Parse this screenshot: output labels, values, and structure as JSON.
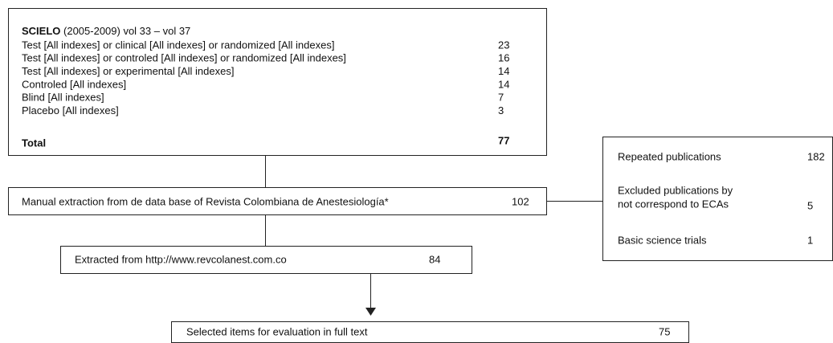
{
  "search_box": {
    "source": "SCIELO",
    "period": " (2005-2009) vol 33 – vol 37",
    "rows": [
      {
        "query": "Test [All indexes] or clinical [All indexes] or randomized [All indexes]",
        "count": 23
      },
      {
        "query": "Test [All indexes] or controled [All indexes] or randomized [All indexes]",
        "count": 16
      },
      {
        "query": "Test [All indexes] or experimental [All indexes]",
        "count": 14
      },
      {
        "query": "Controled [All indexes]",
        "count": 14
      },
      {
        "query": "Blind [All indexes]",
        "count": 7
      },
      {
        "query": "Placebo [All indexes]",
        "count": 3
      }
    ],
    "total": {
      "label": "Total",
      "count": 77
    }
  },
  "manual_extraction": {
    "label": "Manual extraction from de data base of Revista Colombiana de Anestesiología*",
    "count": 102
  },
  "exclusions": [
    {
      "label_lines": [
        "Repeated publications"
      ],
      "count": 182
    },
    {
      "label_lines": [
        "Excluded publications by",
        "not correspond to ECAs"
      ],
      "count": 5
    },
    {
      "label_lines": [
        "Basic science trials"
      ],
      "count": 1
    }
  ],
  "extracted": {
    "label": "Extracted from http://www.revcolanest.com.co",
    "count": 84
  },
  "selected": {
    "label": "Selected items for evaluation in full text",
    "count": 75
  }
}
